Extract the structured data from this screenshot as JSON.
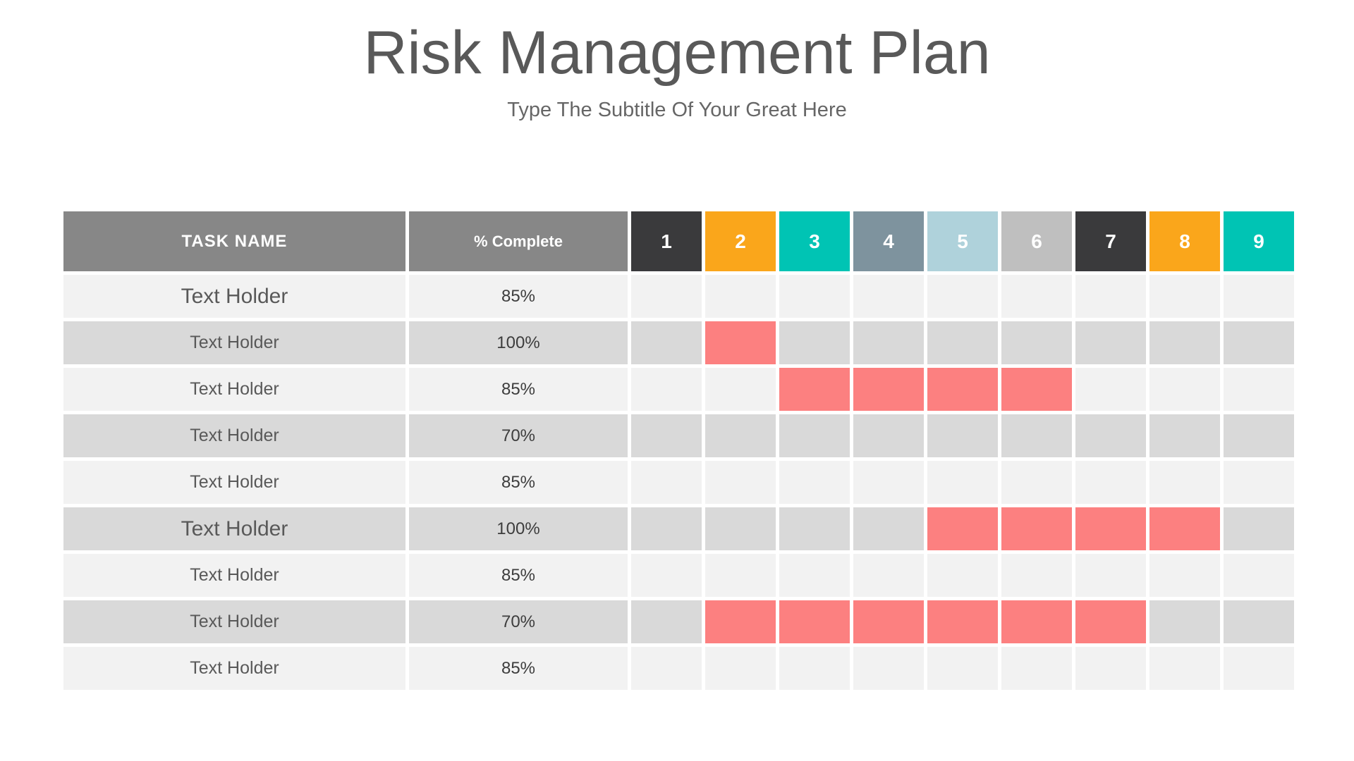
{
  "page": {
    "title": "Risk Management Plan",
    "subtitle": "Type The Subtitle Of Your Great Here"
  },
  "table": {
    "header": {
      "task": "TASK NAME",
      "percent": "% Complete"
    },
    "periods": [
      {
        "label": "1",
        "color": "#3A3A3C"
      },
      {
        "label": "2",
        "color": "#FAA61B"
      },
      {
        "label": "3",
        "color": "#00C4B4"
      },
      {
        "label": "4",
        "color": "#7E939E"
      },
      {
        "label": "5",
        "color": "#AFD2DB"
      },
      {
        "label": "6",
        "color": "#BFBFBF"
      },
      {
        "label": "7",
        "color": "#3A3A3C"
      },
      {
        "label": "8",
        "color": "#FAA61B"
      },
      {
        "label": "9",
        "color": "#00C4B4"
      }
    ],
    "rows": [
      {
        "task": "Text Holder",
        "percent": "85%",
        "bars": [],
        "emphasis": true
      },
      {
        "task": "Text Holder",
        "percent": "100%",
        "bars": [
          2
        ],
        "emphasis": false
      },
      {
        "task": "Text Holder",
        "percent": "85%",
        "bars": [
          3,
          4,
          5,
          6
        ],
        "emphasis": false
      },
      {
        "task": "Text Holder",
        "percent": "70%",
        "bars": [],
        "emphasis": false
      },
      {
        "task": "Text Holder",
        "percent": "85%",
        "bars": [],
        "emphasis": false
      },
      {
        "task": "Text Holder",
        "percent": "100%",
        "bars": [
          5,
          6,
          7,
          8
        ],
        "emphasis": true
      },
      {
        "task": "Text Holder",
        "percent": "85%",
        "bars": [],
        "emphasis": false
      },
      {
        "task": "Text Holder",
        "percent": "70%",
        "bars": [
          2,
          3,
          4,
          5,
          6,
          7
        ],
        "emphasis": false
      },
      {
        "task": "Text Holder",
        "percent": "85%",
        "bars": [],
        "emphasis": false
      }
    ]
  },
  "colors": {
    "header_gray": "#878787",
    "row_light": "#F2F2F2",
    "row_dark": "#D9D9D9",
    "bar_red": "#FC8080",
    "title_gray": "#595959"
  },
  "chart_data": {
    "type": "table",
    "subtype": "gantt",
    "title": "Risk Management Plan",
    "subtitle": "Type The Subtitle Of Your Great Here",
    "columns": [
      "TASK NAME",
      "% Complete",
      "1",
      "2",
      "3",
      "4",
      "5",
      "6",
      "7",
      "8",
      "9"
    ],
    "rows": [
      {
        "task": "Text Holder",
        "percent_complete": 85,
        "bar_periods": []
      },
      {
        "task": "Text Holder",
        "percent_complete": 100,
        "bar_periods": [
          2
        ]
      },
      {
        "task": "Text Holder",
        "percent_complete": 85,
        "bar_periods": [
          3,
          4,
          5,
          6
        ]
      },
      {
        "task": "Text Holder",
        "percent_complete": 70,
        "bar_periods": []
      },
      {
        "task": "Text Holder",
        "percent_complete": 85,
        "bar_periods": []
      },
      {
        "task": "Text Holder",
        "percent_complete": 100,
        "bar_periods": [
          5,
          6,
          7,
          8
        ]
      },
      {
        "task": "Text Holder",
        "percent_complete": 85,
        "bar_periods": []
      },
      {
        "task": "Text Holder",
        "percent_complete": 70,
        "bar_periods": [
          2,
          3,
          4,
          5,
          6,
          7
        ]
      },
      {
        "task": "Text Holder",
        "percent_complete": 85,
        "bar_periods": []
      }
    ],
    "layout": {
      "grid": true,
      "bar_color": "#FC8080",
      "row_stripes": [
        "#F2F2F2",
        "#D9D9D9"
      ]
    }
  }
}
